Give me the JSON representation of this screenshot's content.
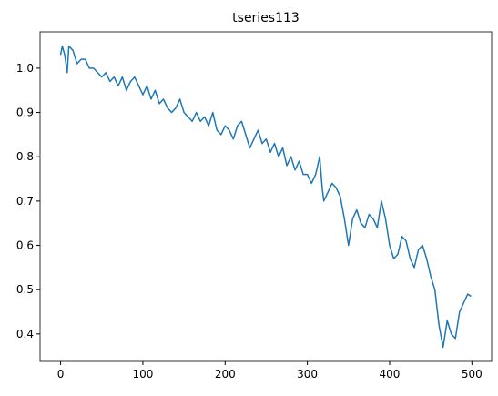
{
  "chart_data": {
    "type": "line",
    "title": "tseries113",
    "x": [
      0,
      2,
      5,
      8,
      10,
      15,
      20,
      25,
      30,
      35,
      40,
      45,
      50,
      55,
      60,
      65,
      70,
      75,
      80,
      85,
      90,
      95,
      100,
      105,
      110,
      115,
      120,
      125,
      130,
      135,
      140,
      145,
      150,
      155,
      160,
      165,
      170,
      175,
      180,
      185,
      190,
      195,
      200,
      205,
      210,
      215,
      220,
      225,
      230,
      235,
      240,
      245,
      250,
      255,
      260,
      265,
      270,
      275,
      280,
      285,
      290,
      295,
      300,
      305,
      310,
      315,
      318,
      320,
      325,
      330,
      335,
      340,
      345,
      350,
      355,
      360,
      365,
      370,
      375,
      380,
      385,
      390,
      395,
      400,
      405,
      410,
      415,
      420,
      425,
      430,
      435,
      440,
      445,
      450,
      455,
      460,
      465,
      470,
      475,
      480,
      485,
      490,
      495,
      499
    ],
    "values": [
      1.03,
      1.05,
      1.03,
      0.99,
      1.05,
      1.04,
      1.01,
      1.02,
      1.02,
      1.0,
      1.0,
      0.99,
      0.98,
      0.99,
      0.97,
      0.98,
      0.96,
      0.98,
      0.95,
      0.97,
      0.98,
      0.96,
      0.94,
      0.96,
      0.93,
      0.95,
      0.92,
      0.93,
      0.91,
      0.9,
      0.91,
      0.93,
      0.9,
      0.89,
      0.88,
      0.9,
      0.88,
      0.89,
      0.87,
      0.9,
      0.86,
      0.85,
      0.87,
      0.86,
      0.84,
      0.87,
      0.88,
      0.85,
      0.82,
      0.84,
      0.86,
      0.83,
      0.84,
      0.81,
      0.83,
      0.8,
      0.82,
      0.78,
      0.8,
      0.77,
      0.79,
      0.76,
      0.76,
      0.74,
      0.76,
      0.8,
      0.73,
      0.7,
      0.72,
      0.74,
      0.73,
      0.71,
      0.66,
      0.6,
      0.66,
      0.68,
      0.65,
      0.64,
      0.67,
      0.66,
      0.64,
      0.7,
      0.66,
      0.6,
      0.57,
      0.58,
      0.62,
      0.61,
      0.57,
      0.55,
      0.59,
      0.6,
      0.57,
      0.53,
      0.5,
      0.42,
      0.37,
      0.43,
      0.4,
      0.39,
      0.45,
      0.47,
      0.49,
      0.485
    ],
    "color": "#1f77b4",
    "xlim": [
      -25,
      524
    ],
    "ylim": [
      0.338,
      1.082
    ],
    "xticks": [
      0,
      100,
      200,
      300,
      400,
      500
    ],
    "yticks": [
      0.4,
      0.5,
      0.6,
      0.7,
      0.8,
      0.9,
      {
        "value": 1,
        "label": "1.0"
      }
    ]
  }
}
